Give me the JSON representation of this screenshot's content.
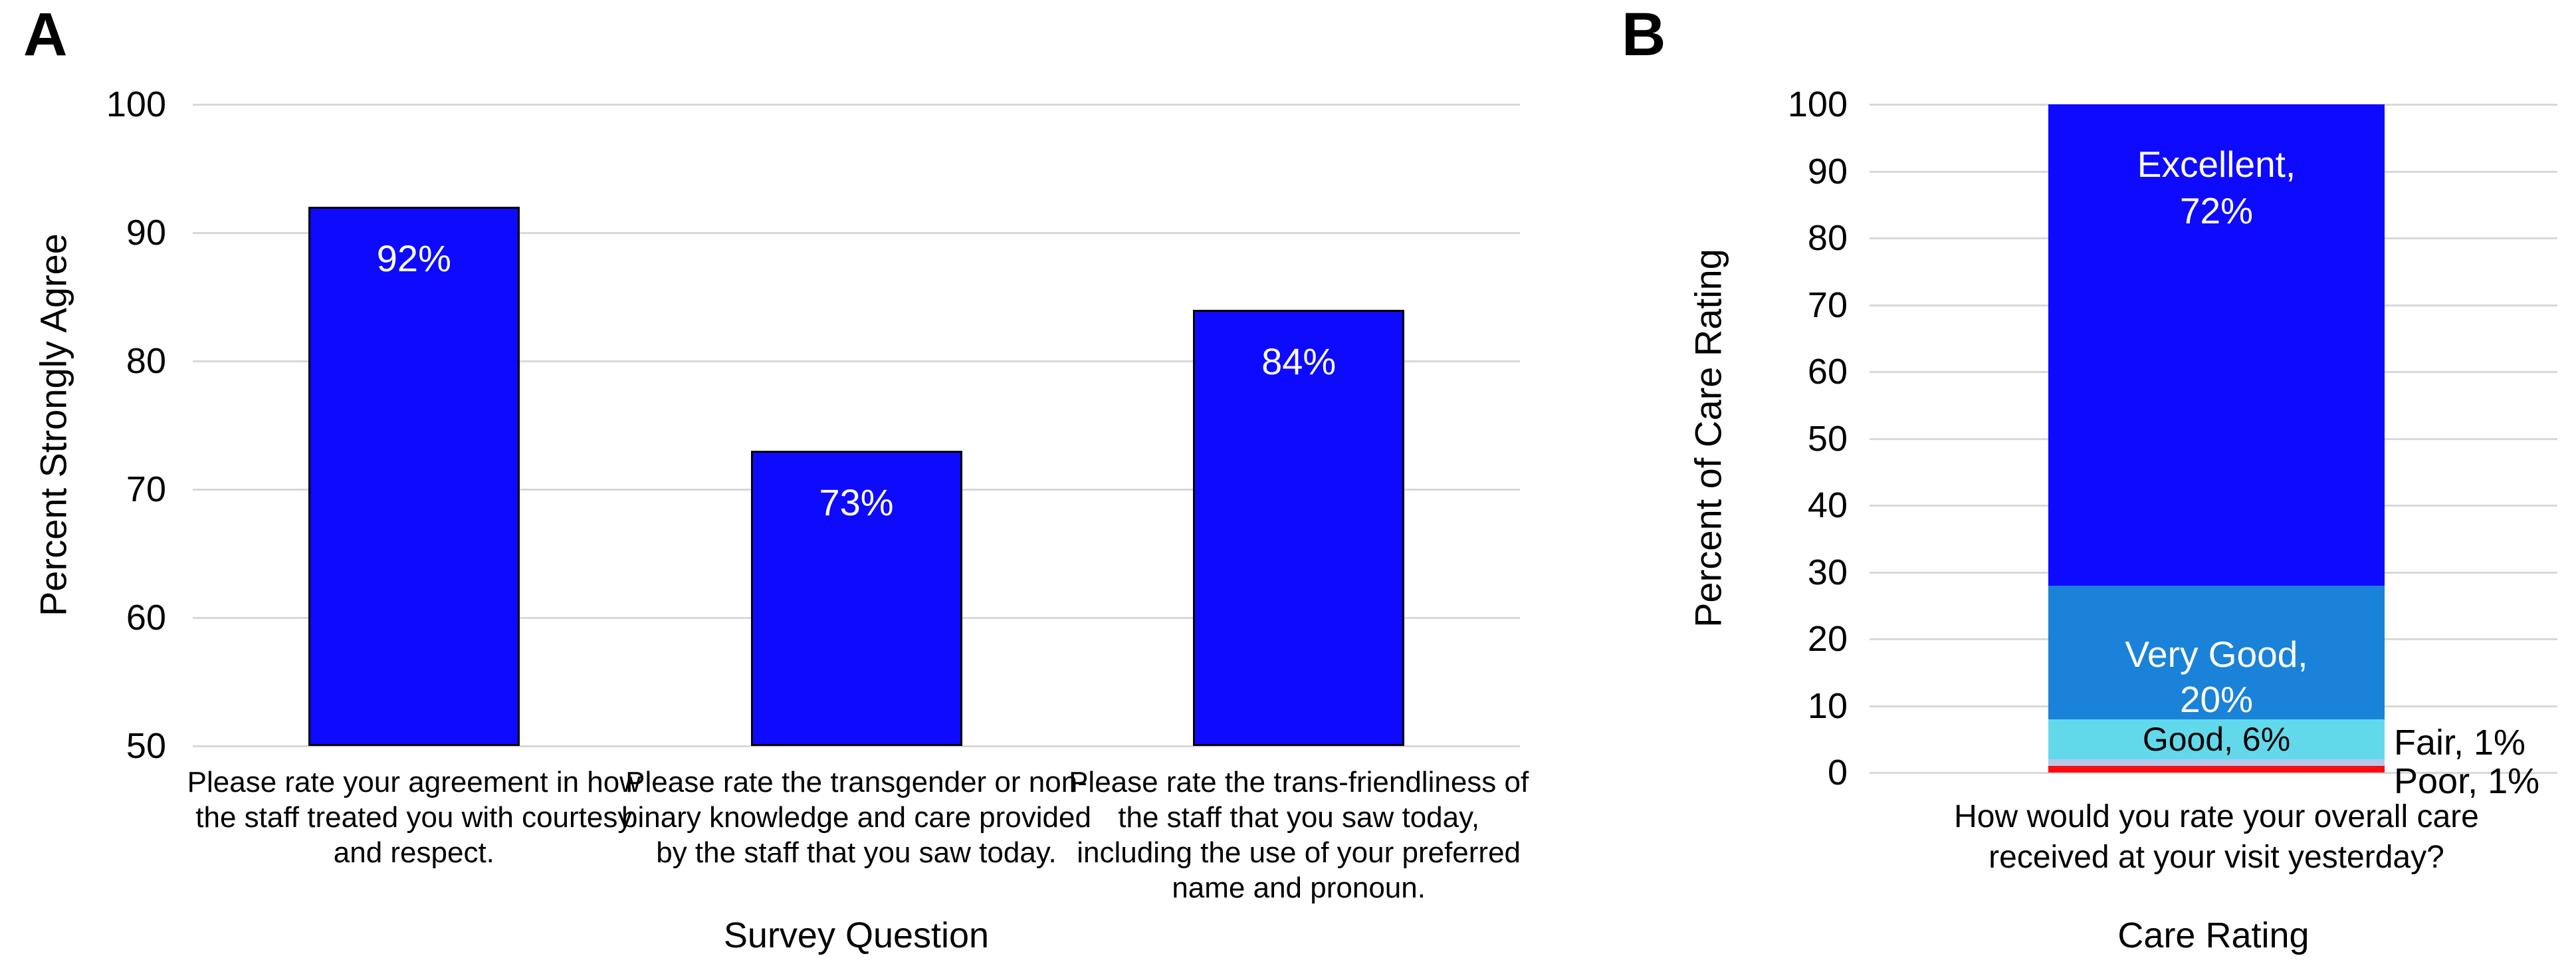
{
  "figure": {
    "background": "#ffffff",
    "gridline_color": "#d8d8d8"
  },
  "chart_data": [
    {
      "panel_label": "A",
      "type": "bar",
      "title": "",
      "xlabel": "Survey Question",
      "ylabel": "Percent Strongly Agree",
      "ylim": [
        50,
        100
      ],
      "yticks": [
        100,
        90,
        80,
        70,
        60,
        50
      ],
      "grid": true,
      "legend": "none",
      "bar_color": "#0d0aff",
      "bar_border_color": "#000000",
      "value_label_color": "#ffffff",
      "categories": [
        "Please rate your agreement in how the staff treated you with courtesy and respect.",
        "Please rate the transgender or non-binary knowledge and care provided by the staff that you saw today.",
        "Please rate the trans-friendliness of the staff that you saw today, including the use of your preferred name and pronoun."
      ],
      "category_lines": [
        [
          "Please rate your agreement in how",
          "the staff treated you with courtesy",
          "and respect."
        ],
        [
          "Please rate the transgender or non-",
          "binary knowledge and care provided",
          "by the staff that you saw today."
        ],
        [
          "Please rate the trans-friendliness of",
          "the staff that you saw today,",
          "including the use of your preferred",
          "name and pronoun."
        ]
      ],
      "values": [
        92,
        73,
        84
      ],
      "value_labels": [
        "92%",
        "73%",
        "84%"
      ]
    },
    {
      "panel_label": "B",
      "type": "stacked-bar",
      "title": "",
      "xlabel": "Care Rating",
      "ylabel": "Percent of Care Rating",
      "ylim": [
        0,
        100
      ],
      "yticks": [
        100,
        90,
        80,
        70,
        60,
        50,
        40,
        30,
        20,
        10,
        0
      ],
      "grid": true,
      "legend": "none",
      "category": "How would you rate your overall care received at your visit yesterday?",
      "category_lines": [
        "How would you rate your overall care",
        "received at your visit yesterday?"
      ],
      "series": [
        {
          "name": "Poor",
          "value": 1,
          "label": "Poor, 1%",
          "label_lines": [
            "Poor, 1%"
          ],
          "color": "#fb0a10",
          "label_placement": "outside",
          "label_color": "#000000"
        },
        {
          "name": "Fair",
          "value": 1,
          "label": "Fair, 1%",
          "label_lines": [
            "Fair, 1%"
          ],
          "color": "#b7c7e9",
          "label_placement": "outside",
          "label_color": "#000000"
        },
        {
          "name": "Good",
          "value": 6,
          "label": "Good, 6%",
          "label_lines": [
            "Good, 6%"
          ],
          "color": "#62d9ea",
          "label_placement": "inside",
          "label_color": "#000000"
        },
        {
          "name": "Very Good",
          "value": 20,
          "label": "Very Good, 20%",
          "label_lines": [
            "Very Good,",
            "20%"
          ],
          "color": "#1a82d8",
          "label_placement": "inside",
          "label_color": "#ffffff"
        },
        {
          "name": "Excellent",
          "value": 72,
          "label": "Excellent, 72%",
          "label_lines": [
            "Excellent,",
            "72%"
          ],
          "color": "#0d0aff",
          "label_placement": "inside",
          "label_color": "#ffffff"
        }
      ]
    }
  ]
}
